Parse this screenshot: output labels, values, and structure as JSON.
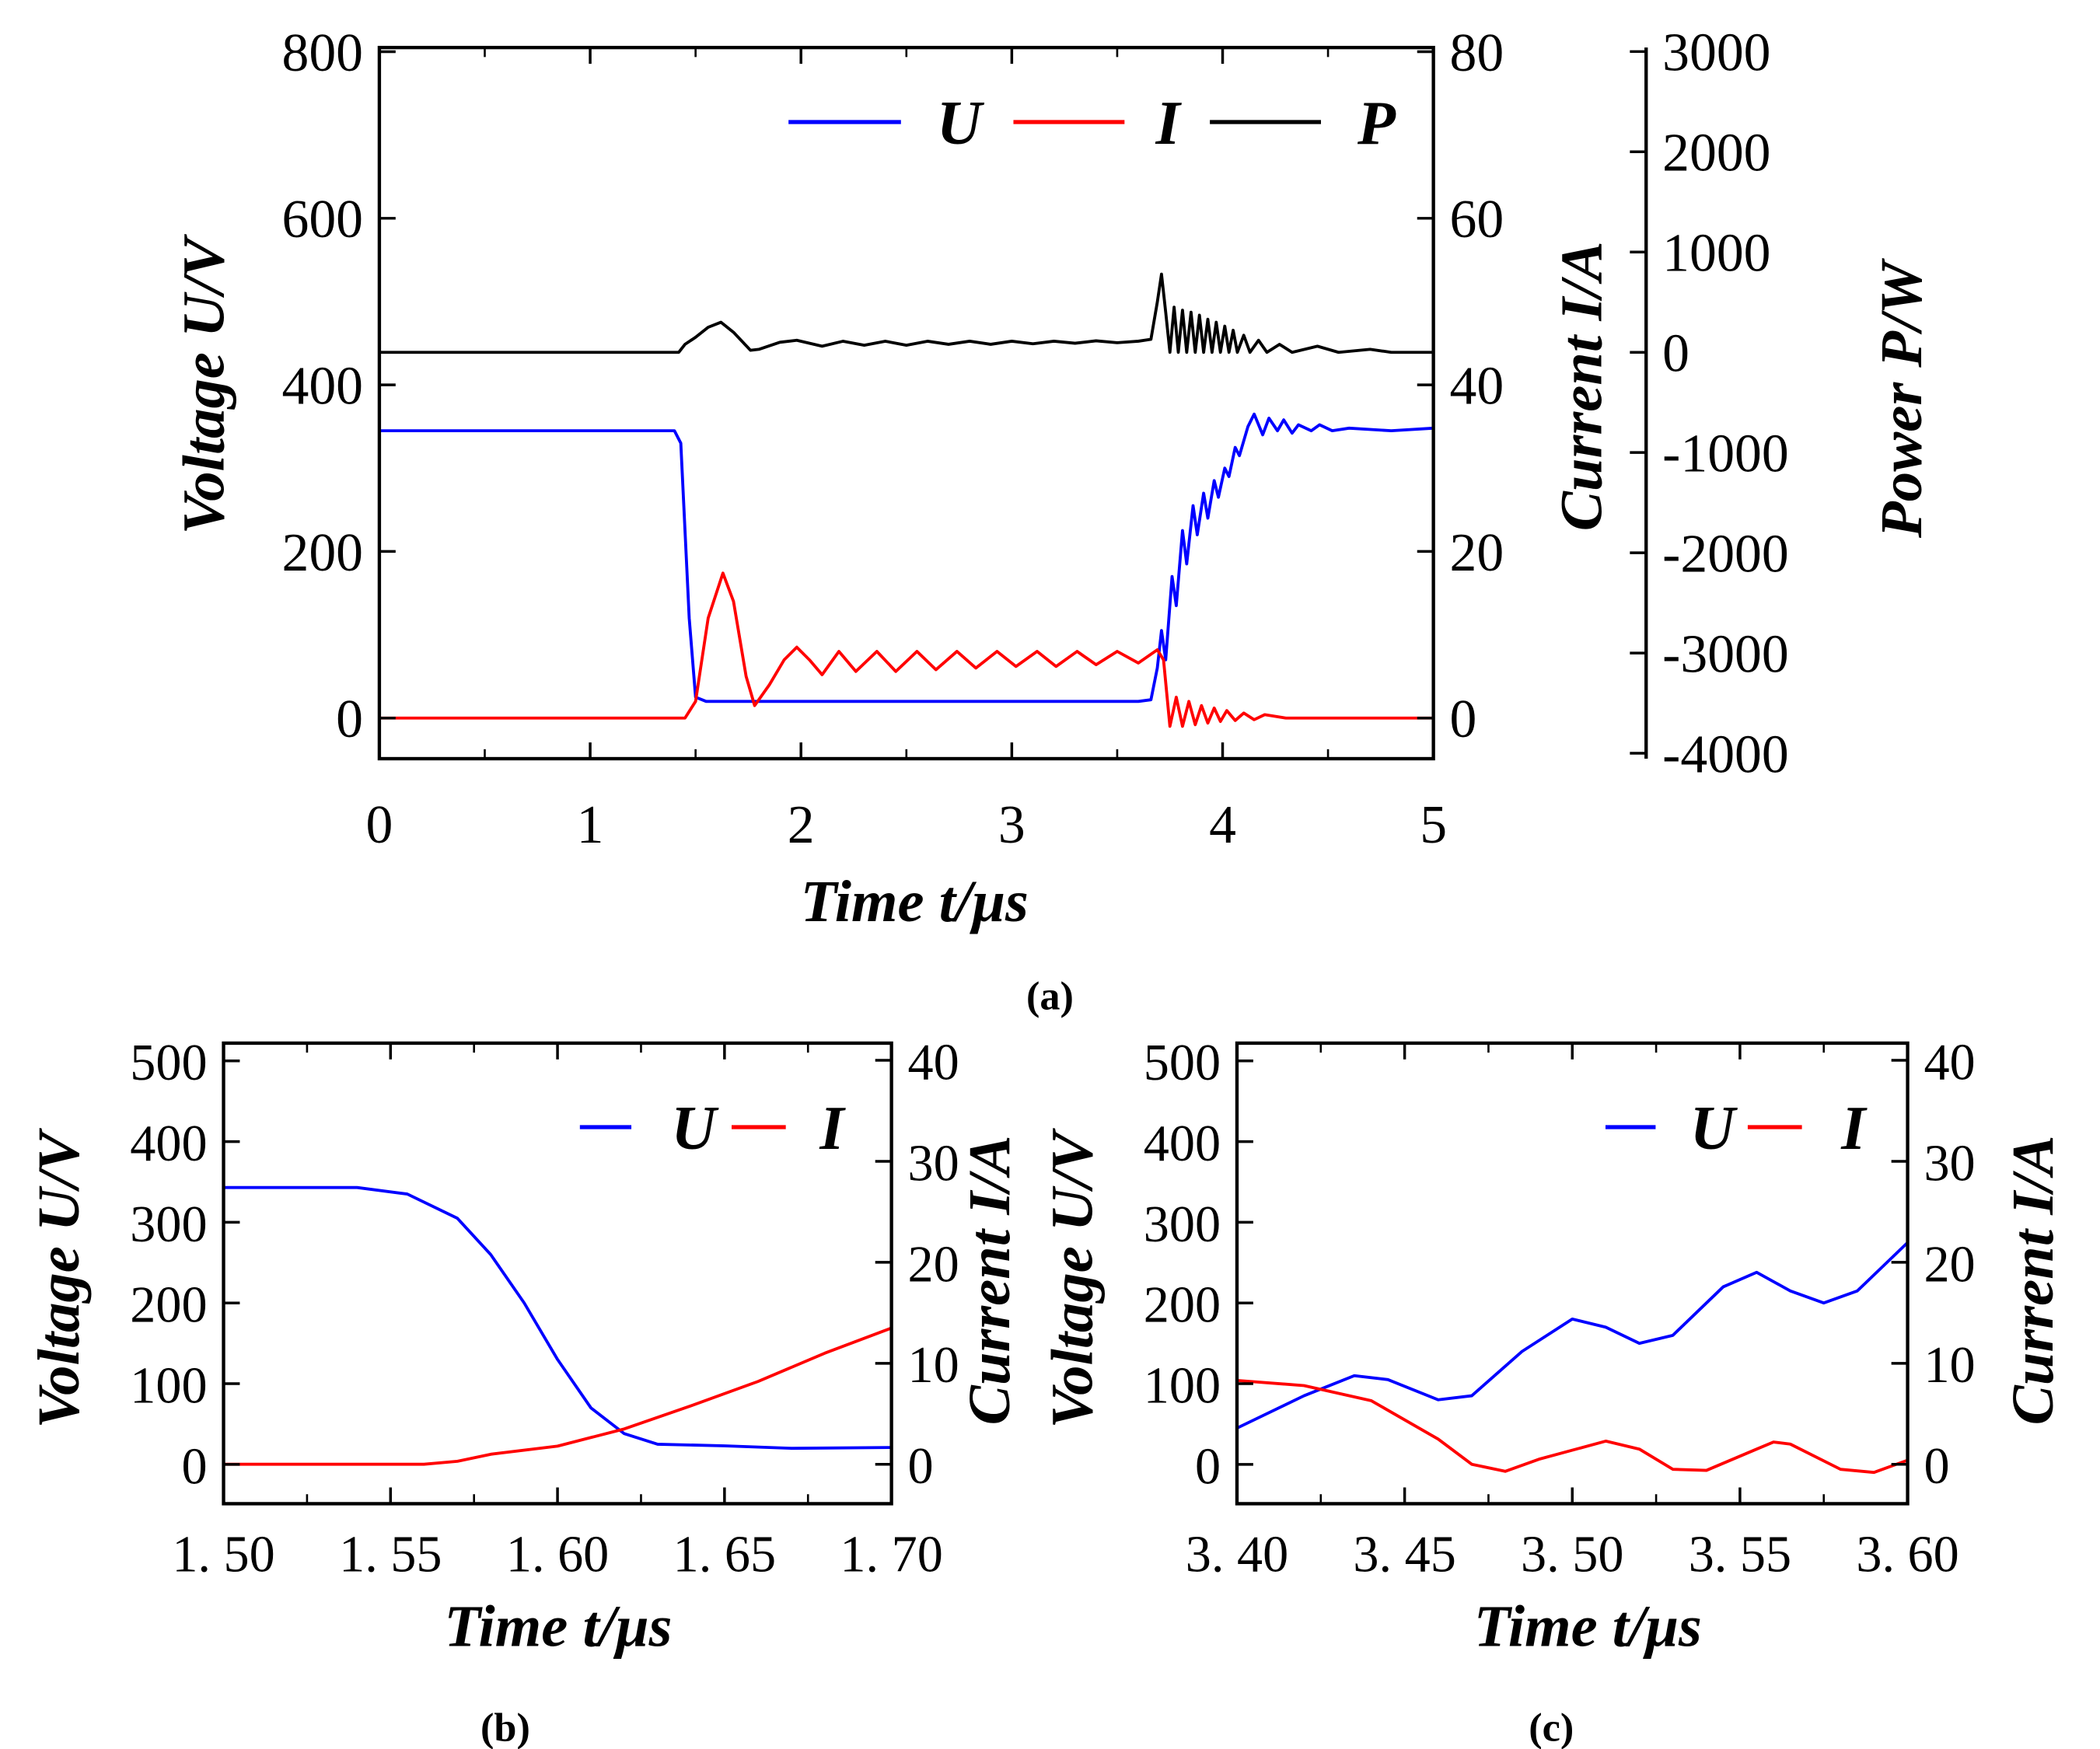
{
  "chart_data": [
    {
      "id": "a",
      "type": "line",
      "panel_label": "(a)",
      "xlabel": "Time  t/μs",
      "ylabel_left": "Voltage  U/V",
      "ylabel_right": "Current  I/A",
      "ylabel_right2": "Power  P/W",
      "xlim": [
        0,
        5
      ],
      "ylim_left": [
        -48.8,
        805
      ],
      "ylim_right": [
        -4.88,
        80.5
      ],
      "ylim_right2": [
        -4054,
        3040
      ],
      "xticks": [
        0,
        1,
        2,
        3,
        4,
        5
      ],
      "xtick_labels": [
        "0",
        "1",
        "2",
        "3",
        "4",
        "5"
      ],
      "yticks_left": [
        0,
        200,
        400,
        600,
        800
      ],
      "ytick_labels_left": [
        "0",
        "200",
        "400",
        "600",
        "800"
      ],
      "yticks_right": [
        0,
        20,
        40,
        60,
        80
      ],
      "ytick_labels_right": [
        "0",
        "20",
        "40",
        "60",
        "80"
      ],
      "yticks_right2": [
        -4000,
        -3000,
        -2000,
        -1000,
        0,
        1000,
        2000,
        3000
      ],
      "ytick_labels_right2": [
        "-4000",
        "-3000",
        "-2000",
        "-1000",
        "0",
        "1000",
        "2000",
        "3000"
      ],
      "legend": [
        "U",
        "I",
        "P"
      ],
      "legend_position": "top-right",
      "series": [
        {
          "name": "U",
          "axis": "left",
          "color": "#0000ff",
          "points": [
            [
              0,
              345
            ],
            [
              1.4,
              345
            ],
            [
              1.43,
              330
            ],
            [
              1.47,
              120
            ],
            [
              1.5,
              25
            ],
            [
              1.55,
              20
            ],
            [
              3.6,
              20
            ],
            [
              3.66,
              22
            ],
            [
              3.69,
              60
            ],
            [
              3.71,
              105
            ],
            [
              3.73,
              70
            ],
            [
              3.76,
              170
            ],
            [
              3.78,
              135
            ],
            [
              3.81,
              225
            ],
            [
              3.83,
              185
            ],
            [
              3.86,
              255
            ],
            [
              3.88,
              220
            ],
            [
              3.91,
              270
            ],
            [
              3.93,
              240
            ],
            [
              3.96,
              285
            ],
            [
              3.98,
              265
            ],
            [
              4.01,
              300
            ],
            [
              4.03,
              290
            ],
            [
              4.06,
              325
            ],
            [
              4.08,
              315
            ],
            [
              4.12,
              350
            ],
            [
              4.15,
              365
            ],
            [
              4.19,
              340
            ],
            [
              4.22,
              360
            ],
            [
              4.26,
              345
            ],
            [
              4.29,
              358
            ],
            [
              4.33,
              342
            ],
            [
              4.36,
              352
            ],
            [
              4.42,
              345
            ],
            [
              4.46,
              352
            ],
            [
              4.52,
              345
            ],
            [
              4.6,
              348
            ],
            [
              4.8,
              345
            ],
            [
              5,
              348
            ]
          ]
        },
        {
          "name": "I",
          "axis": "right",
          "color": "#ff0000",
          "points": [
            [
              0,
              0
            ],
            [
              1.45,
              0
            ],
            [
              1.5,
              2
            ],
            [
              1.56,
              12
            ],
            [
              1.63,
              17.4
            ],
            [
              1.68,
              14
            ],
            [
              1.74,
              5
            ],
            [
              1.78,
              1.5
            ],
            [
              1.85,
              4
            ],
            [
              1.92,
              7
            ],
            [
              1.98,
              8.5
            ],
            [
              2.04,
              7
            ],
            [
              2.1,
              5.2
            ],
            [
              2.18,
              8
            ],
            [
              2.26,
              5.6
            ],
            [
              2.36,
              8
            ],
            [
              2.45,
              5.6
            ],
            [
              2.55,
              8
            ],
            [
              2.64,
              5.8
            ],
            [
              2.74,
              8
            ],
            [
              2.83,
              6
            ],
            [
              2.93,
              8
            ],
            [
              3.02,
              6.2
            ],
            [
              3.12,
              8
            ],
            [
              3.21,
              6.2
            ],
            [
              3.31,
              8
            ],
            [
              3.4,
              6.4
            ],
            [
              3.5,
              8
            ],
            [
              3.6,
              6.6
            ],
            [
              3.69,
              8.2
            ],
            [
              3.72,
              7
            ],
            [
              3.75,
              -1
            ],
            [
              3.78,
              2.5
            ],
            [
              3.81,
              -1
            ],
            [
              3.84,
              2
            ],
            [
              3.87,
              -0.8
            ],
            [
              3.9,
              1.5
            ],
            [
              3.93,
              -0.6
            ],
            [
              3.96,
              1.2
            ],
            [
              3.99,
              -0.4
            ],
            [
              4.02,
              0.9
            ],
            [
              4.06,
              -0.3
            ],
            [
              4.1,
              0.6
            ],
            [
              4.15,
              -0.2
            ],
            [
              4.2,
              0.4
            ],
            [
              4.3,
              0
            ],
            [
              5,
              0
            ]
          ]
        },
        {
          "name": "P",
          "axis": "right2",
          "color": "#000000",
          "points": [
            [
              0,
              0
            ],
            [
              1.42,
              0
            ],
            [
              1.45,
              80
            ],
            [
              1.5,
              150
            ],
            [
              1.56,
              250
            ],
            [
              1.62,
              300
            ],
            [
              1.68,
              200
            ],
            [
              1.76,
              20
            ],
            [
              1.8,
              30
            ],
            [
              1.9,
              100
            ],
            [
              1.98,
              120
            ],
            [
              2.1,
              60
            ],
            [
              2.2,
              110
            ],
            [
              2.3,
              70
            ],
            [
              2.4,
              110
            ],
            [
              2.5,
              70
            ],
            [
              2.6,
              110
            ],
            [
              2.7,
              80
            ],
            [
              2.8,
              110
            ],
            [
              2.9,
              80
            ],
            [
              3.0,
              110
            ],
            [
              3.1,
              85
            ],
            [
              3.2,
              110
            ],
            [
              3.3,
              90
            ],
            [
              3.4,
              115
            ],
            [
              3.5,
              95
            ],
            [
              3.6,
              110
            ],
            [
              3.66,
              130
            ],
            [
              3.69,
              500
            ],
            [
              3.71,
              780
            ],
            [
              3.73,
              400
            ],
            [
              3.75,
              0
            ],
            [
              3.77,
              450
            ],
            [
              3.79,
              0
            ],
            [
              3.81,
              420
            ],
            [
              3.83,
              0
            ],
            [
              3.85,
              400
            ],
            [
              3.87,
              0
            ],
            [
              3.89,
              370
            ],
            [
              3.91,
              0
            ],
            [
              3.93,
              330
            ],
            [
              3.95,
              0
            ],
            [
              3.97,
              300
            ],
            [
              3.99,
              0
            ],
            [
              4.01,
              260
            ],
            [
              4.03,
              0
            ],
            [
              4.05,
              220
            ],
            [
              4.07,
              0
            ],
            [
              4.1,
              170
            ],
            [
              4.13,
              0
            ],
            [
              4.17,
              120
            ],
            [
              4.21,
              0
            ],
            [
              4.27,
              80
            ],
            [
              4.33,
              0
            ],
            [
              4.45,
              60
            ],
            [
              4.55,
              0
            ],
            [
              4.7,
              30
            ],
            [
              4.8,
              0
            ],
            [
              5,
              0
            ]
          ]
        }
      ]
    },
    {
      "id": "b",
      "type": "line",
      "panel_label": "(b)",
      "xlabel": "Time  t/μs",
      "ylabel_left": "Voltage  U/V",
      "ylabel_right": "Current  I/A",
      "xlim": [
        1.5,
        1.7
      ],
      "ylim_left": [
        -48.7,
        522
      ],
      "ylim_right": [
        -3.9,
        41.7
      ],
      "xticks": [
        1.5,
        1.55,
        1.6,
        1.65,
        1.7
      ],
      "xtick_labels": [
        "1. 50",
        "1. 55",
        "1. 60",
        "1. 65",
        "1. 70"
      ],
      "yticks_left": [
        0,
        100,
        200,
        300,
        400,
        500
      ],
      "ytick_labels_left": [
        "0",
        "100",
        "200",
        "300",
        "400",
        "500"
      ],
      "yticks_right": [
        0,
        10,
        20,
        30,
        40
      ],
      "ytick_labels_right": [
        "0",
        "10",
        "20",
        "30",
        "40"
      ],
      "legend": [
        "U",
        "I"
      ],
      "legend_position": "top-right",
      "series": [
        {
          "name": "U",
          "axis": "left",
          "color": "#0000ff",
          "points": [
            [
              1.5,
              343
            ],
            [
              1.54,
              343
            ],
            [
              1.555,
              335
            ],
            [
              1.57,
              305
            ],
            [
              1.58,
              260
            ],
            [
              1.59,
              200
            ],
            [
              1.6,
              130
            ],
            [
              1.61,
              70
            ],
            [
              1.62,
              38
            ],
            [
              1.63,
              25
            ],
            [
              1.65,
              23
            ],
            [
              1.67,
              20
            ],
            [
              1.7,
              21
            ]
          ]
        },
        {
          "name": "I",
          "axis": "right",
          "color": "#ff0000",
          "points": [
            [
              1.5,
              0
            ],
            [
              1.56,
              0
            ],
            [
              1.57,
              0.3
            ],
            [
              1.58,
              1
            ],
            [
              1.6,
              1.8
            ],
            [
              1.62,
              3.5
            ],
            [
              1.64,
              5.8
            ],
            [
              1.66,
              8.2
            ],
            [
              1.68,
              11
            ],
            [
              1.7,
              13.5
            ]
          ]
        }
      ]
    },
    {
      "id": "c",
      "type": "line",
      "panel_label": "(c)",
      "xlabel": "Time  t/μs",
      "ylabel_left": "Voltage  U/V",
      "ylabel_right": "Current  I/A",
      "xlim": [
        3.4,
        3.6
      ],
      "ylim_left": [
        -48.7,
        522
      ],
      "ylim_right": [
        -3.9,
        41.7
      ],
      "xticks": [
        3.4,
        3.45,
        3.5,
        3.55,
        3.6
      ],
      "xtick_labels": [
        "3. 40",
        "3. 45",
        "3. 50",
        "3. 55",
        "3. 60"
      ],
      "yticks_left": [
        0,
        100,
        200,
        300,
        400,
        500
      ],
      "ytick_labels_left": [
        "0",
        "100",
        "200",
        "300",
        "400",
        "500"
      ],
      "yticks_right": [
        0,
        10,
        20,
        30,
        40
      ],
      "ytick_labels_right": [
        "0",
        "10",
        "20",
        "30",
        "40"
      ],
      "legend": [
        "U",
        "I"
      ],
      "legend_position": "top-right",
      "series": [
        {
          "name": "U",
          "axis": "left",
          "color": "#0000ff",
          "points": [
            [
              3.4,
              45
            ],
            [
              3.42,
              85
            ],
            [
              3.435,
              110
            ],
            [
              3.445,
              105
            ],
            [
              3.46,
              80
            ],
            [
              3.47,
              85
            ],
            [
              3.485,
              140
            ],
            [
              3.5,
              180
            ],
            [
              3.51,
              170
            ],
            [
              3.52,
              150
            ],
            [
              3.53,
              160
            ],
            [
              3.545,
              220
            ],
            [
              3.555,
              238
            ],
            [
              3.565,
              215
            ],
            [
              3.575,
              200
            ],
            [
              3.585,
              215
            ],
            [
              3.6,
              275
            ]
          ]
        },
        {
          "name": "I",
          "axis": "right",
          "color": "#ff0000",
          "points": [
            [
              3.4,
              8.3
            ],
            [
              3.42,
              7.8
            ],
            [
              3.44,
              6.3
            ],
            [
              3.46,
              2.5
            ],
            [
              3.47,
              0
            ],
            [
              3.48,
              -0.7
            ],
            [
              3.49,
              0.5
            ],
            [
              3.51,
              2.3
            ],
            [
              3.52,
              1.5
            ],
            [
              3.53,
              -0.5
            ],
            [
              3.54,
              -0.6
            ],
            [
              3.555,
              1.5
            ],
            [
              3.56,
              2.2
            ],
            [
              3.565,
              2
            ],
            [
              3.58,
              -0.5
            ],
            [
              3.59,
              -0.8
            ],
            [
              3.6,
              0.4
            ]
          ]
        }
      ]
    }
  ]
}
